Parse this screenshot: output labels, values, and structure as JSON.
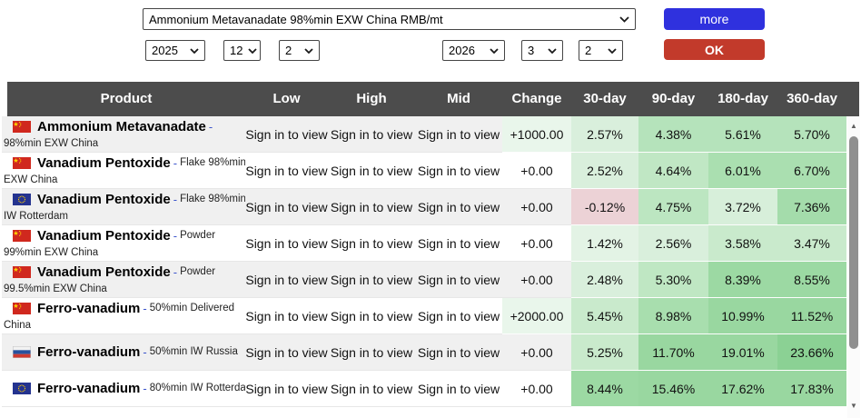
{
  "controls": {
    "product_select_value": "Ammonium Metavanadate 98%min EXW China RMB/mt",
    "start_date": {
      "year": "2025",
      "month": "12",
      "day": "2"
    },
    "end_date": {
      "year": "2026",
      "month": "3",
      "day": "2"
    },
    "more_label": "more",
    "ok_label": "OK"
  },
  "icons": {
    "scroll_up": "▲",
    "scroll_down": "▼"
  },
  "colors": {
    "more_button": "#2f31de",
    "ok_button": "#c23a2b",
    "header_bg": "#4c4c4c",
    "negative_cell": "#ecd2d6"
  },
  "table": {
    "headers": [
      "Product",
      "Low",
      "High",
      "Mid",
      "Change",
      "30-day",
      "90-day",
      "180-day",
      "360-day"
    ],
    "sign_in_label": "Sign in to view",
    "rows": [
      {
        "flag": "china",
        "name": "Ammonium Metavanadate",
        "desc1": "",
        "desc2": "98%min EXW China",
        "change": {
          "text": "+1000.00",
          "bg": "#e9f6eb"
        },
        "d30": {
          "text": "2.57%",
          "bg": "#d9efdc"
        },
        "d90": {
          "text": "4.38%",
          "bg": "#b5e3bb"
        },
        "d180": {
          "text": "5.61%",
          "bg": "#b5e3bb"
        },
        "d360": {
          "text": "5.70%",
          "bg": "#b5e3bb"
        }
      },
      {
        "flag": "china",
        "name": "Vanadium Pentoxide",
        "desc1": "Flake 98%min",
        "desc2": "EXW China",
        "change": {
          "text": "+0.00",
          "bg": null
        },
        "d30": {
          "text": "2.52%",
          "bg": "#d9efdc"
        },
        "d90": {
          "text": "4.64%",
          "bg": "#c0e7c4"
        },
        "d180": {
          "text": "6.01%",
          "bg": "#aadfb0"
        },
        "d360": {
          "text": "6.70%",
          "bg": "#aadfb0"
        }
      },
      {
        "flag": "eu",
        "name": "Vanadium Pentoxide",
        "desc1": "Flake 98%min",
        "desc2": "IW Rotterdam",
        "change": {
          "text": "+0.00",
          "bg": null
        },
        "d30": {
          "text": "-0.12%",
          "bg": "#ecd2d6"
        },
        "d90": {
          "text": "4.75%",
          "bg": "#bce6c1"
        },
        "d180": {
          "text": "3.72%",
          "bg": "#d7efda"
        },
        "d360": {
          "text": "7.36%",
          "bg": "#a4dcab"
        }
      },
      {
        "flag": "china",
        "name": "Vanadium Pentoxide",
        "desc1": "Powder",
        "desc2": "99%min EXW China",
        "change": {
          "text": "+0.00",
          "bg": null
        },
        "d30": {
          "text": "1.42%",
          "bg": "#e3f3e5"
        },
        "d90": {
          "text": "2.56%",
          "bg": "#d9efdc"
        },
        "d180": {
          "text": "3.58%",
          "bg": "#c9eacc"
        },
        "d360": {
          "text": "3.47%",
          "bg": "#c9eacc"
        }
      },
      {
        "flag": "china",
        "name": "Vanadium Pentoxide",
        "desc1": "Powder",
        "desc2": "99.5%min EXW China",
        "change": {
          "text": "+0.00",
          "bg": null
        },
        "d30": {
          "text": "2.48%",
          "bg": "#d9efdc"
        },
        "d90": {
          "text": "5.30%",
          "bg": "#bfe7c3"
        },
        "d180": {
          "text": "8.39%",
          "bg": "#9cd9a3"
        },
        "d360": {
          "text": "8.55%",
          "bg": "#9cd9a3"
        }
      },
      {
        "flag": "china",
        "name": "Ferro-vanadium",
        "desc1": "50%min Delivered",
        "desc2": "China",
        "change": {
          "text": "+2000.00",
          "bg": "#e9f6eb"
        },
        "d30": {
          "text": "5.45%",
          "bg": "#c9eacc"
        },
        "d90": {
          "text": "8.98%",
          "bg": "#a8deae"
        },
        "d180": {
          "text": "10.99%",
          "bg": "#99d7a0"
        },
        "d360": {
          "text": "11.52%",
          "bg": "#99d7a0"
        }
      },
      {
        "flag": "russia",
        "name": "Ferro-vanadium",
        "desc1": "50%min IW Russia",
        "desc2": "",
        "change": {
          "text": "+0.00",
          "bg": null
        },
        "d30": {
          "text": "5.25%",
          "bg": "#c9eacc"
        },
        "d90": {
          "text": "11.70%",
          "bg": "#99d7a0"
        },
        "d180": {
          "text": "19.01%",
          "bg": "#99d7a0"
        },
        "d360": {
          "text": "23.66%",
          "bg": "#8bd194"
        }
      },
      {
        "flag": "eu",
        "name": "Ferro-vanadium",
        "desc1": "80%min IW Rotterdam",
        "desc2": "",
        "change": {
          "text": "+0.00",
          "bg": null
        },
        "d30": {
          "text": "8.44%",
          "bg": "#9cd9a3"
        },
        "d90": {
          "text": "15.46%",
          "bg": "#99d7a0"
        },
        "d180": {
          "text": "17.62%",
          "bg": "#99d7a0"
        },
        "d360": {
          "text": "17.83%",
          "bg": "#99d7a0"
        }
      }
    ]
  }
}
